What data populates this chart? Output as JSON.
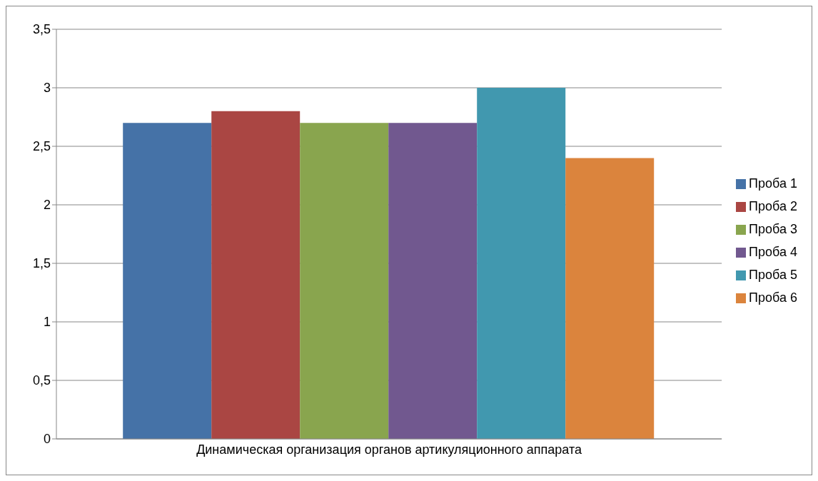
{
  "chart_data": {
    "type": "bar",
    "categories": [
      "Динамическая организация органов артикуляционного аппарата"
    ],
    "series": [
      {
        "name": "Проба 1",
        "color": "#4572a7",
        "values": [
          2.7
        ]
      },
      {
        "name": "Проба 2",
        "color": "#aa4643",
        "values": [
          2.8
        ]
      },
      {
        "name": "Проба 3",
        "color": "#89a54e",
        "values": [
          2.7
        ]
      },
      {
        "name": "Проба 4",
        "color": "#71588f",
        "values": [
          2.7
        ]
      },
      {
        "name": "Проба 5",
        "color": "#4198af",
        "values": [
          3.0
        ]
      },
      {
        "name": "Проба 6",
        "color": "#db843d",
        "values": [
          2.4
        ]
      }
    ],
    "ylim": [
      0,
      3.5
    ],
    "yticks": [
      0,
      {
        "value": 0.5,
        "label": "0,5"
      },
      1,
      {
        "value": 1.5,
        "label": "1,5"
      },
      2,
      {
        "value": 2.5,
        "label": "2,5"
      },
      3,
      {
        "value": 3.5,
        "label": "3,5"
      }
    ],
    "grid": "y",
    "legend": "right"
  }
}
